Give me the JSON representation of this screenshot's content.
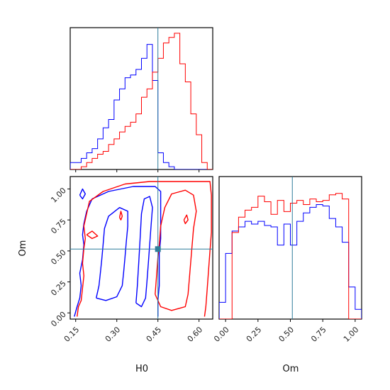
{
  "chart_data": {
    "type": "corner",
    "parameters": [
      "H0",
      "Om"
    ],
    "truth": {
      "H0": 0.45,
      "Om": 0.515
    },
    "colors": {
      "series_a": "#0000ff",
      "series_b": "#ff0000",
      "truth": "#2e7d9a"
    },
    "panels": [
      {
        "id": "hist-H0",
        "type": "step-histogram",
        "xlim": [
          0.13,
          0.65
        ],
        "xticks": [
          0.15,
          0.3,
          0.45,
          0.6
        ],
        "bin_edges": [
          0.13,
          0.15,
          0.17,
          0.19,
          0.21,
          0.23,
          0.25,
          0.27,
          0.29,
          0.31,
          0.33,
          0.35,
          0.37,
          0.39,
          0.41,
          0.43,
          0.45,
          0.47,
          0.49,
          0.51,
          0.53,
          0.55,
          0.57,
          0.59,
          0.61,
          0.63,
          0.65
        ],
        "series": [
          {
            "color": "blue",
            "counts": [
              0.05,
              0.05,
              0.08,
              0.12,
              0.15,
              0.22,
              0.3,
              0.36,
              0.5,
              0.58,
              0.66,
              0.68,
              0.72,
              0.8,
              0.9,
              0.64,
              0.12,
              0.05,
              0.02,
              0,
              0,
              0,
              0,
              0,
              0,
              0
            ]
          },
          {
            "color": "red",
            "counts": [
              0,
              0,
              0.02,
              0.05,
              0.08,
              0.11,
              0.13,
              0.18,
              0.22,
              0.27,
              0.31,
              0.34,
              0.4,
              0.52,
              0.58,
              0.7,
              0.8,
              0.91,
              0.95,
              0.98,
              0.76,
              0.63,
              0.4,
              0.25,
              0.05,
              0
            ]
          }
        ]
      },
      {
        "id": "hist-Om",
        "type": "step-histogram",
        "xlim": [
          -0.05,
          1.05
        ],
        "xticks": [
          0.0,
          0.25,
          0.5,
          0.75,
          1.0
        ],
        "bin_edges": [
          -0.05,
          0.0,
          0.05,
          0.1,
          0.15,
          0.2,
          0.25,
          0.3,
          0.35,
          0.4,
          0.45,
          0.5,
          0.55,
          0.6,
          0.65,
          0.7,
          0.75,
          0.8,
          0.85,
          0.9,
          0.95,
          1.0,
          1.05
        ],
        "series": [
          {
            "color": "blue",
            "counts": [
              0.12,
              0.47,
              0.63,
              0.66,
              0.7,
              0.68,
              0.7,
              0.67,
              0.66,
              0.53,
              0.68,
              0.53,
              0.7,
              0.76,
              0.8,
              0.82,
              0.81,
              0.72,
              0.66,
              0.55,
              0.23,
              0.07
            ]
          },
          {
            "color": "red",
            "counts": [
              0,
              0,
              0.62,
              0.73,
              0.78,
              0.8,
              0.88,
              0.84,
              0.75,
              0.85,
              0.77,
              0.83,
              0.85,
              0.82,
              0.86,
              0.84,
              0.85,
              0.89,
              0.9,
              0.86,
              0,
              0
            ]
          }
        ]
      },
      {
        "id": "contour-H0-Om",
        "type": "contour",
        "xlim": [
          0.13,
          0.65
        ],
        "ylim": [
          -0.05,
          1.1
        ],
        "xticks": [
          0.15,
          0.3,
          0.45,
          0.6
        ],
        "yticks": [
          0.0,
          0.25,
          0.5,
          0.75,
          1.0
        ],
        "xlabel": "H0",
        "ylabel": "Om",
        "contours": [
          {
            "color": "blue",
            "points": [
              [
                0.145,
                -0.03
              ],
              [
                0.155,
                0.05
              ],
              [
                0.165,
                0.12
              ],
              [
                0.17,
                0.22
              ],
              [
                0.165,
                0.32
              ],
              [
                0.175,
                0.43
              ],
              [
                0.18,
                0.55
              ],
              [
                0.175,
                0.63
              ],
              [
                0.18,
                0.72
              ],
              [
                0.19,
                0.82
              ],
              [
                0.21,
                0.92
              ],
              [
                0.27,
                0.98
              ],
              [
                0.36,
                1.02
              ],
              [
                0.44,
                1.02
              ],
              [
                0.46,
                0.98
              ],
              [
                0.46,
                0.85
              ],
              [
                0.46,
                0.72
              ],
              [
                0.46,
                0.6
              ],
              [
                0.455,
                0.48
              ],
              [
                0.455,
                0.35
              ],
              [
                0.455,
                0.22
              ],
              [
                0.45,
                0.1
              ],
              [
                0.45,
                -0.03
              ]
            ]
          },
          {
            "color": "blue",
            "points": [
              [
                0.225,
                0.12
              ],
              [
                0.235,
                0.22
              ],
              [
                0.24,
                0.32
              ],
              [
                0.245,
                0.43
              ],
              [
                0.25,
                0.55
              ],
              [
                0.255,
                0.68
              ],
              [
                0.27,
                0.78
              ],
              [
                0.31,
                0.85
              ],
              [
                0.34,
                0.82
              ],
              [
                0.34,
                0.7
              ],
              [
                0.335,
                0.58
              ],
              [
                0.33,
                0.45
              ],
              [
                0.325,
                0.33
              ],
              [
                0.32,
                0.22
              ],
              [
                0.3,
                0.13
              ],
              [
                0.26,
                0.1
              ],
              [
                0.225,
                0.12
              ]
            ]
          },
          {
            "color": "blue",
            "points": [
              [
                0.37,
                0.08
              ],
              [
                0.375,
                0.22
              ],
              [
                0.38,
                0.4
              ],
              [
                0.385,
                0.6
              ],
              [
                0.39,
                0.8
              ],
              [
                0.4,
                0.92
              ],
              [
                0.42,
                0.94
              ],
              [
                0.43,
                0.85
              ],
              [
                0.425,
                0.7
              ],
              [
                0.42,
                0.55
              ],
              [
                0.415,
                0.4
              ],
              [
                0.41,
                0.25
              ],
              [
                0.405,
                0.12
              ],
              [
                0.39,
                0.05
              ],
              [
                0.37,
                0.08
              ]
            ]
          },
          {
            "color": "blue",
            "points": [
              [
                0.165,
                0.95
              ],
              [
                0.175,
                1.0
              ],
              [
                0.185,
                0.96
              ],
              [
                0.175,
                0.92
              ],
              [
                0.165,
                0.95
              ]
            ]
          },
          {
            "color": "red",
            "points": [
              [
                0.155,
                -0.03
              ],
              [
                0.16,
                0.05
              ],
              [
                0.17,
                0.1
              ],
              [
                0.175,
                0.2
              ],
              [
                0.18,
                0.3
              ],
              [
                0.175,
                0.4
              ],
              [
                0.18,
                0.52
              ],
              [
                0.185,
                0.6
              ],
              [
                0.18,
                0.7
              ],
              [
                0.19,
                0.8
              ],
              [
                0.2,
                0.9
              ],
              [
                0.25,
                0.98
              ],
              [
                0.33,
                1.04
              ],
              [
                0.42,
                1.06
              ],
              [
                0.52,
                1.06
              ],
              [
                0.6,
                1.06
              ],
              [
                0.64,
                1.06
              ],
              [
                0.645,
                0.95
              ],
              [
                0.645,
                0.8
              ],
              [
                0.645,
                0.65
              ],
              [
                0.64,
                0.5
              ],
              [
                0.635,
                0.35
              ],
              [
                0.63,
                0.2
              ],
              [
                0.625,
                0.05
              ],
              [
                0.62,
                -0.03
              ]
            ]
          },
          {
            "color": "red",
            "points": [
              [
                0.44,
                0.15
              ],
              [
                0.445,
                0.3
              ],
              [
                0.45,
                0.45
              ],
              [
                0.455,
                0.55
              ],
              [
                0.46,
                0.7
              ],
              [
                0.475,
                0.85
              ],
              [
                0.5,
                0.96
              ],
              [
                0.55,
                0.99
              ],
              [
                0.58,
                0.95
              ],
              [
                0.59,
                0.82
              ],
              [
                0.58,
                0.68
              ],
              [
                0.575,
                0.55
              ],
              [
                0.57,
                0.42
              ],
              [
                0.565,
                0.28
              ],
              [
                0.56,
                0.15
              ],
              [
                0.55,
                0.05
              ],
              [
                0.5,
                0.02
              ],
              [
                0.46,
                0.05
              ],
              [
                0.44,
                0.15
              ]
            ]
          },
          {
            "color": "red",
            "points": [
              [
                0.545,
                0.75
              ],
              [
                0.555,
                0.79
              ],
              [
                0.56,
                0.75
              ],
              [
                0.55,
                0.72
              ],
              [
                0.545,
                0.75
              ]
            ]
          },
          {
            "color": "red",
            "points": [
              [
                0.31,
                0.77
              ],
              [
                0.315,
                0.82
              ],
              [
                0.32,
                0.78
              ],
              [
                0.315,
                0.75
              ],
              [
                0.31,
                0.77
              ]
            ]
          },
          {
            "color": "red",
            "points": [
              [
                0.19,
                0.63
              ],
              [
                0.21,
                0.66
              ],
              [
                0.23,
                0.62
              ],
              [
                0.21,
                0.6
              ],
              [
                0.19,
                0.63
              ]
            ]
          }
        ]
      }
    ]
  }
}
